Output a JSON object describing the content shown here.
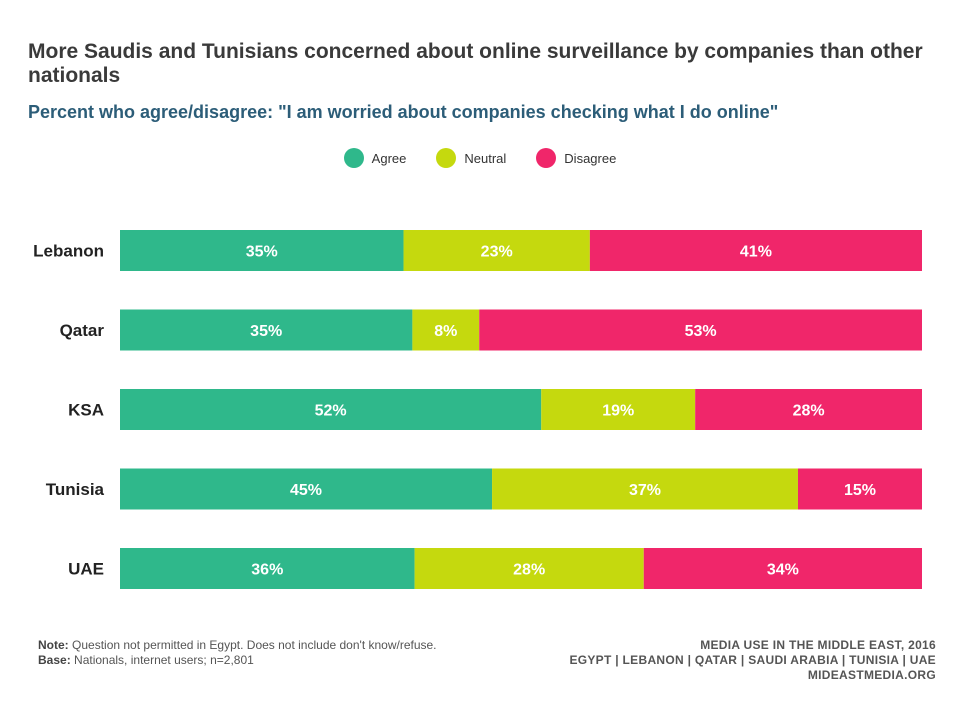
{
  "chart_data": {
    "type": "bar",
    "orientation": "horizontal",
    "stacked": true,
    "title": "More Saudis and Tunisians concerned about online surveillance by companies than other nationals",
    "subtitle": "Percent who agree/disagree: \"I am worried about companies checking what I do online\"",
    "categories": [
      "Lebanon",
      "Qatar",
      "KSA",
      "Tunisia",
      "UAE"
    ],
    "series": [
      {
        "name": "Agree",
        "color": "#2fb88b",
        "values": [
          35,
          35,
          52,
          45,
          36
        ],
        "labels": [
          "35%",
          "35%",
          "52%",
          "45%",
          "36%"
        ]
      },
      {
        "name": "Neutral",
        "color": "#c5d90e",
        "values": [
          23,
          8,
          19,
          37,
          28
        ],
        "labels": [
          "23%",
          "8%",
          "19%",
          "37%",
          "28%"
        ]
      },
      {
        "name": "Disagree",
        "color": "#f0266a",
        "values": [
          41,
          53,
          28,
          15,
          34
        ],
        "labels": [
          "41%",
          "53%",
          "28%",
          "15%",
          "34%"
        ]
      }
    ],
    "legend_position": "top"
  },
  "footer": {
    "note_label": "Note:",
    "note_text": "Question not permitted in Egypt. Does not include don't know/refuse.",
    "base_label": "Base:",
    "base_text": "Nationals, internet users; n=2,801",
    "source_line1": "MEDIA USE IN THE MIDDLE EAST, 2016",
    "source_line2": "EGYPT | LEBANON | QATAR | SAUDI ARABIA | TUNISIA | UAE",
    "source_line3": "MIDEASTMEDIA.ORG"
  }
}
